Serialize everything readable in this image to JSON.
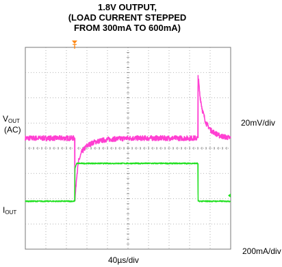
{
  "chart_data": {
    "type": "line",
    "title": [
      "1.8V OUTPUT,",
      "(LOAD CURRENT STEPPED",
      "FROM 300mA TO 600mA)"
    ],
    "xlabel": "40µs/div",
    "grid": true,
    "divisions": {
      "x": 10,
      "y": 8
    },
    "trigger_marker": "T",
    "series": [
      {
        "name": "VOUT (AC)",
        "label_main": "V",
        "label_sub": "OUT",
        "label_note": "(AC)",
        "scale": "20mV/div",
        "color": "#ff3fd2",
        "unit": "mV",
        "x_us": [
          0,
          96,
          96.5,
          100,
          104,
          110,
          120,
          135,
          160,
          200,
          260,
          336,
          336.5,
          340,
          345,
          352,
          362,
          378,
          400
        ],
        "y": [
          0,
          0,
          -50,
          -30,
          -18,
          -11,
          -6,
          -3,
          -1,
          0,
          0,
          0,
          50,
          34,
          22,
          12,
          6,
          2,
          0
        ],
        "noise_pp_mV": 4
      },
      {
        "name": "IOUT",
        "label_main": "I",
        "label_sub": "OUT",
        "scale": "200mA/div",
        "color": "#1fe01f",
        "unit": "mA",
        "x_us": [
          0,
          96,
          96.5,
          100,
          336,
          336.5,
          400
        ],
        "y": [
          300,
          300,
          560,
          600,
          600,
          300,
          300
        ],
        "noise_pp_mA": 10
      }
    ]
  }
}
